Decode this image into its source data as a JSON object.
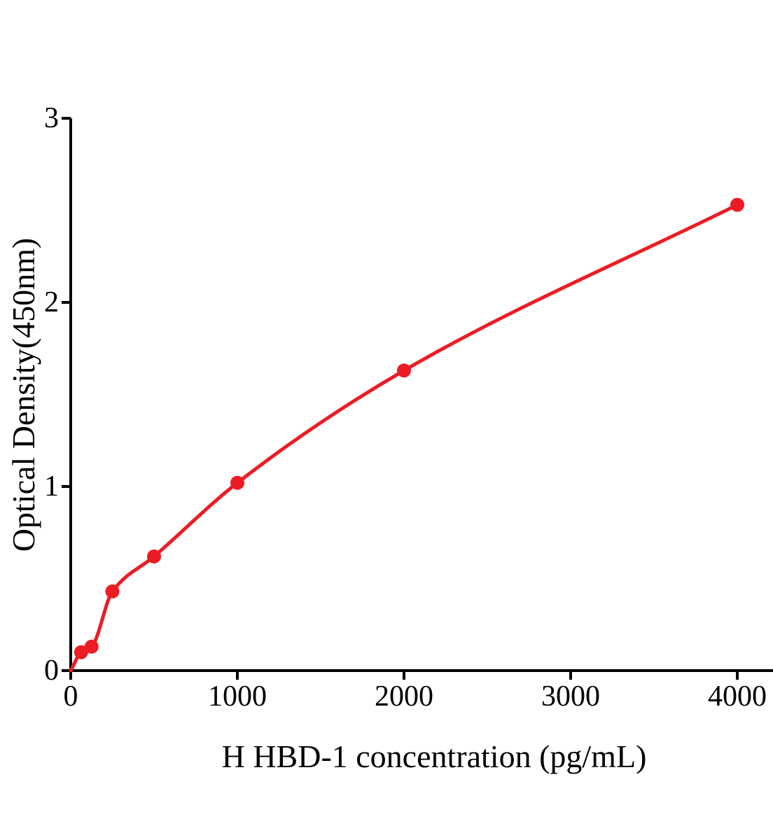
{
  "chart_data": {
    "type": "scatter",
    "title": "",
    "xlabel": "H HBD-1 concentration (pg/mL)",
    "ylabel": "Optical Density(450nm)",
    "x_ticks": [
      0,
      1000,
      2000,
      3000,
      4000
    ],
    "y_ticks": [
      0,
      1,
      2,
      3
    ],
    "xlim": [
      0,
      4215
    ],
    "ylim": [
      0,
      3
    ],
    "grid": false,
    "legend": "none",
    "series_name": "standard-curve",
    "curve_fit_start": {
      "x": 0,
      "y": 0
    },
    "points": [
      {
        "x": 62.5,
        "y": 0.1
      },
      {
        "x": 125,
        "y": 0.13
      },
      {
        "x": 250,
        "y": 0.43
      },
      {
        "x": 500,
        "y": 0.62
      },
      {
        "x": 1000,
        "y": 1.02
      },
      {
        "x": 2000,
        "y": 1.63
      },
      {
        "x": 4000,
        "y": 2.53
      }
    ],
    "colors": {
      "series": "#EC1C24",
      "axis": "#000000",
      "background": "#FFFFFF"
    }
  }
}
